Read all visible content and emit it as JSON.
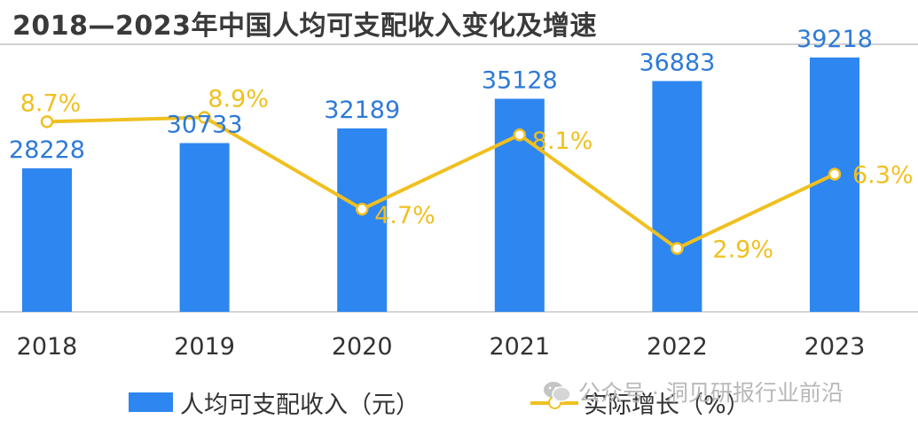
{
  "title": "2018—2023年中国人均可支配收入变化及增速",
  "watermark": "公众号 · 洞见研报行业前沿",
  "colors": {
    "bar": "#2e86f0",
    "line": "#f0c020",
    "bar_label": "#2e7ad6",
    "line_label": "#f0c020",
    "axis_text": "#333333"
  },
  "chart_data": {
    "type": "bar+line",
    "categories": [
      "2018",
      "2019",
      "2020",
      "2021",
      "2022",
      "2023"
    ],
    "series": [
      {
        "name": "人均可支配收入（元）",
        "type": "bar",
        "values": [
          28228,
          30733,
          32189,
          35128,
          36883,
          39218
        ],
        "labels": [
          "28228",
          "30733",
          "32189",
          "35128",
          "36883",
          "39218"
        ]
      },
      {
        "name": "实际增长（%）",
        "type": "line",
        "values": [
          8.7,
          8.9,
          4.7,
          8.1,
          2.9,
          6.3
        ],
        "labels": [
          "8.7%",
          "8.9%",
          "4.7%",
          "8.1%",
          "2.9%",
          "6.3%"
        ]
      }
    ],
    "bar_ylim": [
      14000,
      40000
    ],
    "line_ylim": [
      0,
      12
    ],
    "grid": false,
    "legend_position": "bottom"
  }
}
